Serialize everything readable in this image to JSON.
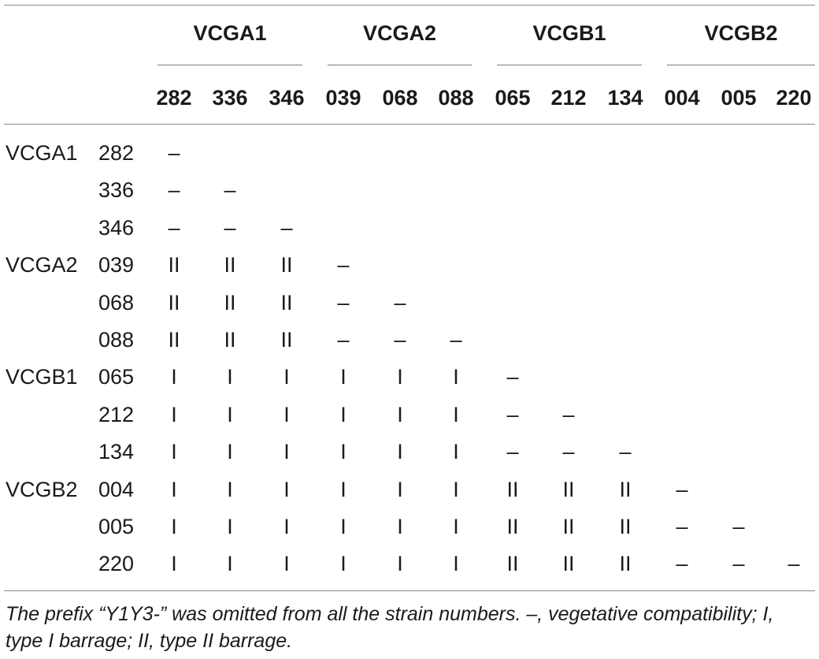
{
  "groups": [
    {
      "label": "VCGA1",
      "strains": [
        "282",
        "336",
        "346"
      ]
    },
    {
      "label": "VCGA2",
      "strains": [
        "039",
        "068",
        "088"
      ]
    },
    {
      "label": "VCGB1",
      "strains": [
        "065",
        "212",
        "134"
      ]
    },
    {
      "label": "VCGB2",
      "strains": [
        "004",
        "005",
        "220"
      ]
    }
  ],
  "rows": [
    {
      "group": "VCGA1",
      "strain": "282",
      "cells": [
        "–"
      ]
    },
    {
      "group": "",
      "strain": "336",
      "cells": [
        "–",
        "–"
      ]
    },
    {
      "group": "",
      "strain": "346",
      "cells": [
        "–",
        "–",
        "–"
      ]
    },
    {
      "group": "VCGA2",
      "strain": "039",
      "cells": [
        "II",
        "II",
        "II",
        "–"
      ]
    },
    {
      "group": "",
      "strain": "068",
      "cells": [
        "II",
        "II",
        "II",
        "–",
        "–"
      ]
    },
    {
      "group": "",
      "strain": "088",
      "cells": [
        "II",
        "II",
        "II",
        "–",
        "–",
        "–"
      ]
    },
    {
      "group": "VCGB1",
      "strain": "065",
      "cells": [
        "I",
        "I",
        "I",
        "I",
        "I",
        "I",
        "–"
      ]
    },
    {
      "group": "",
      "strain": "212",
      "cells": [
        "I",
        "I",
        "I",
        "I",
        "I",
        "I",
        "–",
        "–"
      ]
    },
    {
      "group": "",
      "strain": "134",
      "cells": [
        "I",
        "I",
        "I",
        "I",
        "I",
        "I",
        "–",
        "–",
        "–"
      ]
    },
    {
      "group": "VCGB2",
      "strain": "004",
      "cells": [
        "I",
        "I",
        "I",
        "I",
        "I",
        "I",
        "II",
        "II",
        "II",
        "–"
      ]
    },
    {
      "group": "",
      "strain": "005",
      "cells": [
        "I",
        "I",
        "I",
        "I",
        "I",
        "I",
        "II",
        "II",
        "II",
        "–",
        "–"
      ]
    },
    {
      "group": "",
      "strain": "220",
      "cells": [
        "I",
        "I",
        "I",
        "I",
        "I",
        "I",
        "II",
        "II",
        "II",
        "–",
        "–",
        "–"
      ]
    }
  ],
  "footnote": "The prefix “Y1Y3-” was omitted from all the strain numbers. –, vegetative compatibility; I, type I barrage; II, type II barrage."
}
